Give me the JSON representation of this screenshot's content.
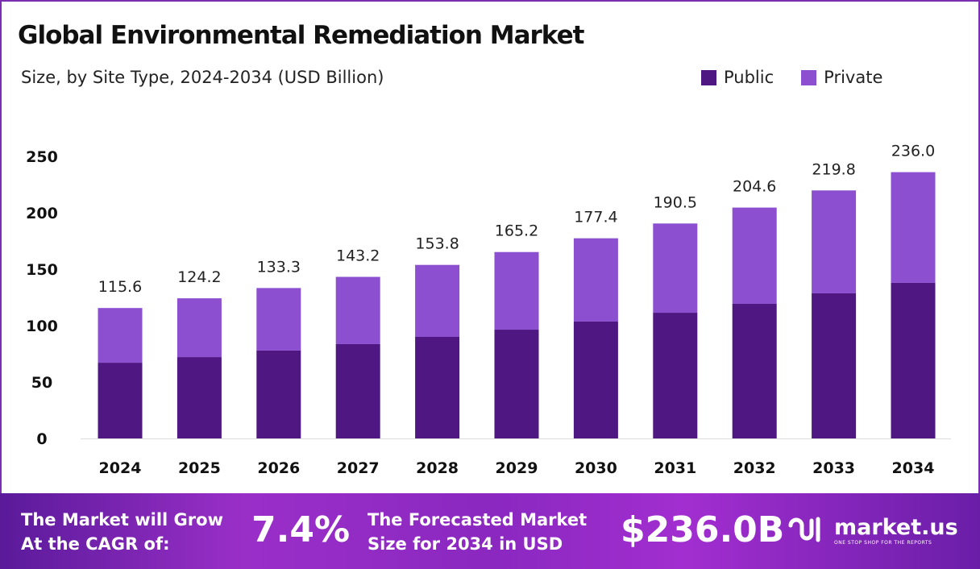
{
  "title": "Global Environmental Remediation Market",
  "subtitle": "Size, by Site Type, 2024-2034 (USD Billion)",
  "colors": {
    "public": "#4e1781",
    "private": "#8b4fd0"
  },
  "chart_data": {
    "type": "bar",
    "stacked": true,
    "title": "Global Environmental Remediation Market",
    "subtitle": "Size, by Site Type, 2024-2034 (USD Billion)",
    "categories": [
      "2024",
      "2025",
      "2026",
      "2027",
      "2028",
      "2029",
      "2030",
      "2031",
      "2032",
      "2033",
      "2034"
    ],
    "series": [
      {
        "name": "Public",
        "values": [
          67.1,
          72.1,
          77.9,
          83.6,
          90.0,
          96.4,
          103.6,
          111.4,
          119.3,
          128.6,
          137.9
        ]
      },
      {
        "name": "Private",
        "values": [
          48.5,
          52.1,
          55.4,
          59.6,
          63.8,
          68.8,
          73.8,
          79.1,
          85.3,
          91.2,
          98.1
        ]
      }
    ],
    "totals": [
      "115.6",
      "124.2",
      "133.3",
      "143.2",
      "153.8",
      "165.2",
      "177.4",
      "190.5",
      "204.6",
      "219.8",
      "236.0"
    ],
    "yticks": [
      "0",
      "50",
      "100",
      "150",
      "200",
      "250"
    ],
    "ylim": [
      0,
      250
    ],
    "grid": false,
    "legend": "top-right"
  },
  "footer": {
    "cagr_label_1": "The Market will Grow",
    "cagr_label_2": "At the CAGR of:",
    "cagr_value": "7.4%",
    "forecast_label_1": "The Forecasted Market",
    "forecast_label_2": "Size for 2034 in USD",
    "forecast_value": "$236.0B",
    "logo_text": "market.us",
    "logo_tagline": "ONE STOP SHOP FOR THE REPORTS"
  }
}
